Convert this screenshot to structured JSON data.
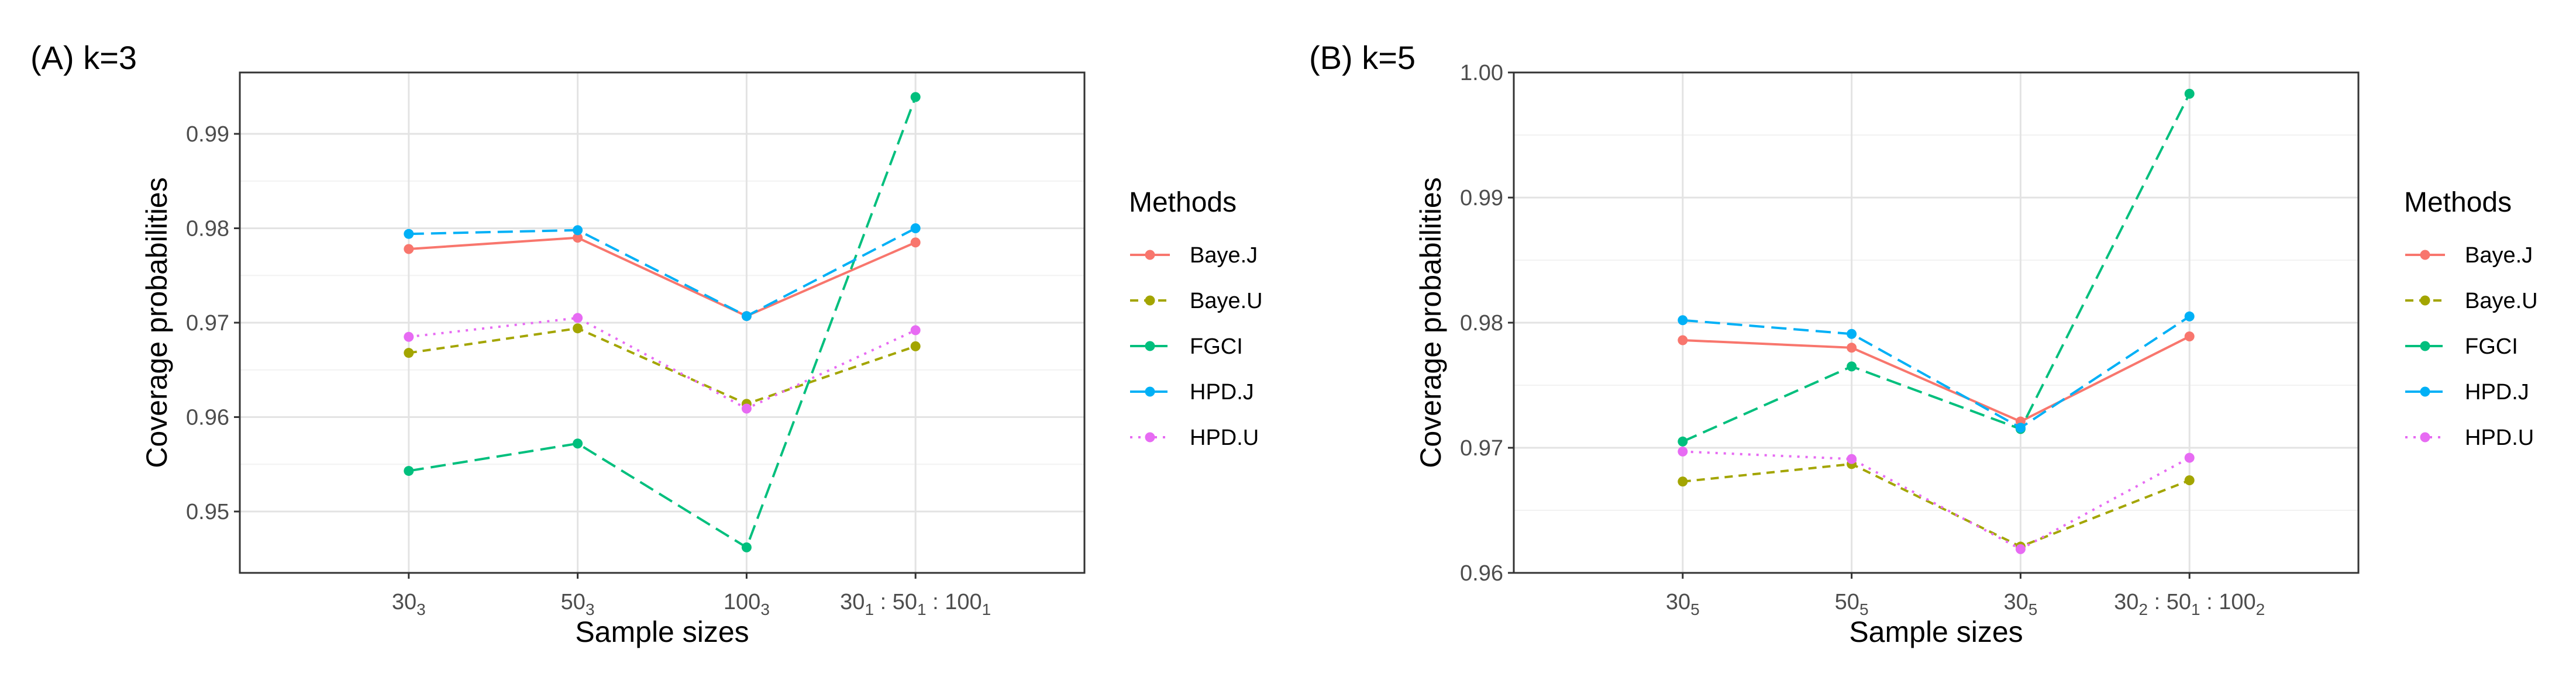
{
  "chart_data": [
    {
      "type": "line",
      "title": "(A) k=3",
      "xlabel": "Sample sizes",
      "ylabel": "Coverage probabilities",
      "ylim": [
        0.9435,
        0.9965
      ],
      "yticks": [
        "0.95",
        "0.96",
        "0.97",
        "0.98",
        "0.99"
      ],
      "ytick_values": [
        0.95,
        0.96,
        0.97,
        0.98,
        0.99
      ],
      "categories": [
        {
          "label": "30₃",
          "parts": [
            [
              "30",
              "3"
            ]
          ]
        },
        {
          "label": "50₃",
          "parts": [
            [
              "50",
              "3"
            ]
          ]
        },
        {
          "label": "100₃",
          "parts": [
            [
              "100",
              "3"
            ]
          ]
        },
        {
          "label": "30₁ : 50₁ : 100₁",
          "parts": [
            [
              "30",
              "1"
            ],
            [
              "50",
              "1"
            ],
            [
              "100",
              "1"
            ]
          ]
        }
      ],
      "legend_title": "Methods",
      "grid": true,
      "series": [
        {
          "name": "Baye.J",
          "color": "#F8766D",
          "dash": "solid",
          "values": [
            0.9778,
            0.979,
            0.9707,
            0.9785
          ]
        },
        {
          "name": "Baye.U",
          "color": "#A3A500",
          "dash": "dashed",
          "values": [
            0.9668,
            0.9694,
            0.9614,
            0.9675
          ]
        },
        {
          "name": "FGCI",
          "color": "#00BF7D",
          "dash": "longdash",
          "values": [
            0.9543,
            0.9572,
            0.9462,
            0.9939
          ]
        },
        {
          "name": "HPD.J",
          "color": "#00B0F6",
          "dash": "longdash2",
          "values": [
            0.9794,
            0.9798,
            0.9707,
            0.98
          ]
        },
        {
          "name": "HPD.U",
          "color": "#E76BF3",
          "dash": "dotted",
          "values": [
            0.9685,
            0.9705,
            0.9609,
            0.9692
          ]
        }
      ]
    },
    {
      "type": "line",
      "title": "(B) k=5",
      "xlabel": "Sample sizes",
      "ylabel": "Coverage probabilities",
      "ylim": [
        0.96,
        1.0
      ],
      "yticks": [
        "0.96",
        "0.97",
        "0.98",
        "0.99",
        "1.00"
      ],
      "ytick_values": [
        0.96,
        0.97,
        0.98,
        0.99,
        1.0
      ],
      "categories": [
        {
          "label": "30₅",
          "parts": [
            [
              "30",
              "5"
            ]
          ]
        },
        {
          "label": "50₅",
          "parts": [
            [
              "50",
              "5"
            ]
          ]
        },
        {
          "label": "30₅",
          "parts": [
            [
              "30",
              "5"
            ]
          ]
        },
        {
          "label": "30₂ : 50₁ : 100₂",
          "parts": [
            [
              "30",
              "2"
            ],
            [
              "50",
              "1"
            ],
            [
              "100",
              "2"
            ]
          ]
        }
      ],
      "legend_title": "Methods",
      "grid": true,
      "series": [
        {
          "name": "Baye.J",
          "color": "#F8766D",
          "dash": "solid",
          "values": [
            0.9786,
            0.978,
            0.9721,
            0.9789
          ]
        },
        {
          "name": "Baye.U",
          "color": "#A3A500",
          "dash": "dashed",
          "values": [
            0.9673,
            0.9687,
            0.9621,
            0.9674
          ]
        },
        {
          "name": "FGCI",
          "color": "#00BF7D",
          "dash": "longdash",
          "values": [
            0.9705,
            0.9765,
            0.9715,
            0.9983
          ]
        },
        {
          "name": "HPD.J",
          "color": "#00B0F6",
          "dash": "longdash2",
          "values": [
            0.9802,
            0.9791,
            0.9716,
            0.9805
          ]
        },
        {
          "name": "HPD.U",
          "color": "#E76BF3",
          "dash": "dotted",
          "values": [
            0.9697,
            0.9691,
            0.9619,
            0.9692
          ]
        }
      ]
    }
  ]
}
